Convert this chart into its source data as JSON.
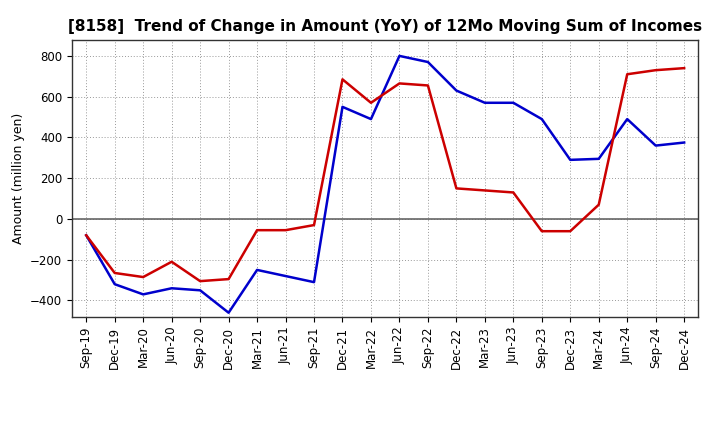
{
  "title": "[8158]  Trend of Change in Amount (YoY) of 12Mo Moving Sum of Incomes",
  "ylabel": "Amount (million yen)",
  "ylim": [
    -480,
    880
  ],
  "yticks": [
    -400,
    -200,
    0,
    200,
    400,
    600,
    800
  ],
  "labels": [
    "Sep-19",
    "Dec-19",
    "Mar-20",
    "Jun-20",
    "Sep-20",
    "Dec-20",
    "Mar-21",
    "Jun-21",
    "Sep-21",
    "Dec-21",
    "Mar-22",
    "Jun-22",
    "Sep-22",
    "Dec-22",
    "Mar-23",
    "Jun-23",
    "Sep-23",
    "Dec-23",
    "Mar-24",
    "Jun-24",
    "Sep-24",
    "Dec-24"
  ],
  "ordinary_income_values": [
    -80,
    -320,
    -370,
    -340,
    -350,
    -460,
    -250,
    -280,
    -310,
    550,
    490,
    800,
    770,
    630,
    570,
    570,
    490,
    290,
    295,
    490,
    360,
    375
  ],
  "net_income_values": [
    -80,
    -265,
    -285,
    -210,
    -305,
    -295,
    -55,
    -55,
    -30,
    685,
    570,
    665,
    655,
    150,
    140,
    130,
    -60,
    -60,
    70,
    710,
    730,
    740
  ],
  "ordinary_income_color": "#0000cc",
  "net_income_color": "#cc0000",
  "line_width": 1.8,
  "background_color": "#ffffff",
  "grid_color": "#999999",
  "zero_line_color": "#666666",
  "title_fontsize": 11,
  "axis_label_fontsize": 9,
  "tick_fontsize": 8.5,
  "legend_fontsize": 9
}
